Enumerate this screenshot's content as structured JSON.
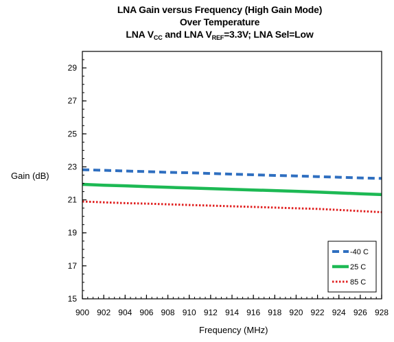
{
  "chart_data": {
    "type": "line",
    "title_line1": "LNA Gain versus Frequency (High Gain Mode)",
    "title_line2": "Over Temperature",
    "title_line3": {
      "prefix": "LNA V",
      "sub1": "CC",
      "middle": " and LNA V",
      "sub2": "REF",
      "suffix": "=3.3V; LNA Sel=Low"
    },
    "xlabel": "Frequency (MHz)",
    "ylabel": "Gain (dB)",
    "xlim": [
      900,
      928
    ],
    "ylim": [
      15,
      30
    ],
    "x_ticks": [
      900,
      902,
      904,
      906,
      908,
      910,
      912,
      914,
      916,
      918,
      920,
      922,
      924,
      926,
      928
    ],
    "y_ticks": [
      15,
      17,
      19,
      21,
      23,
      25,
      27,
      29
    ],
    "legend_position": "bottom-right",
    "grid": false,
    "series": [
      {
        "name": "-40 C",
        "color": "#2f6fc0",
        "style": "dashed",
        "x": [
          900,
          902,
          904,
          906,
          908,
          910,
          912,
          914,
          916,
          918,
          920,
          922,
          924,
          926,
          928
        ],
        "y": [
          22.83,
          22.79,
          22.75,
          22.71,
          22.67,
          22.64,
          22.6,
          22.56,
          22.52,
          22.48,
          22.45,
          22.41,
          22.37,
          22.33,
          22.3
        ]
      },
      {
        "name": "25 C",
        "color": "#1db954",
        "style": "solid",
        "x": [
          900,
          902,
          904,
          906,
          908,
          910,
          912,
          914,
          916,
          918,
          920,
          922,
          924,
          926,
          928
        ],
        "y": [
          21.94,
          21.89,
          21.85,
          21.8,
          21.76,
          21.72,
          21.68,
          21.64,
          21.6,
          21.56,
          21.52,
          21.47,
          21.42,
          21.37,
          21.32
        ]
      },
      {
        "name": "85 C",
        "color": "#e02020",
        "style": "dotted",
        "x": [
          900,
          902,
          904,
          906,
          908,
          910,
          912,
          914,
          916,
          918,
          920,
          922,
          924,
          926,
          928
        ],
        "y": [
          20.9,
          20.85,
          20.8,
          20.77,
          20.73,
          20.69,
          20.65,
          20.61,
          20.57,
          20.53,
          20.49,
          20.45,
          20.39,
          20.32,
          20.25
        ]
      }
    ]
  }
}
